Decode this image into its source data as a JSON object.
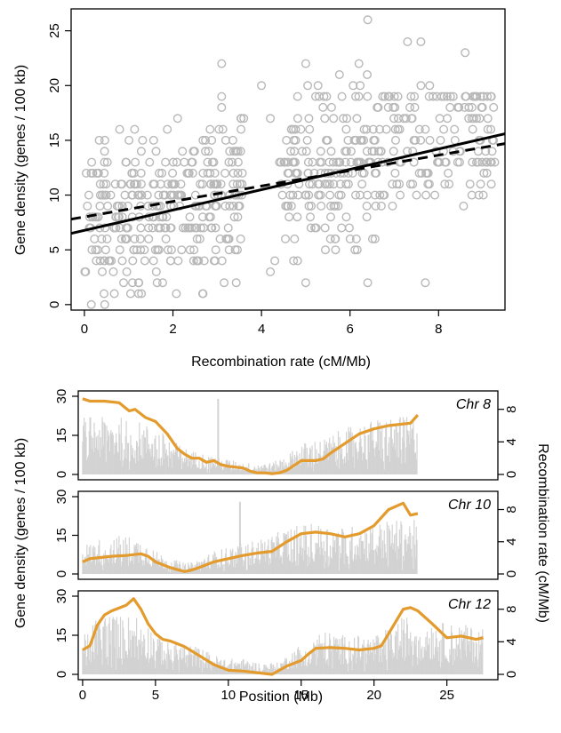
{
  "colors": {
    "points": "#b8b8b8",
    "bars": "#d3d3d3",
    "recomb_line": "#e39b2d",
    "fit": "#000000"
  },
  "chart_data": [
    {
      "type": "scatter",
      "xlabel": "Recombination rate (cM/Mb)",
      "ylabel": "Gene density (genes / 100 kb)",
      "xlim": [
        -0.3,
        9.5
      ],
      "ylim": [
        -0.5,
        27
      ],
      "x_ticks": [
        0,
        2,
        4,
        6,
        8
      ],
      "y_ticks": [
        0,
        5,
        10,
        15,
        20,
        25
      ],
      "fit_lines": [
        {
          "style": "solid",
          "x": [
            -0.3,
            9.5
          ],
          "y": [
            6.5,
            15.6
          ]
        },
        {
          "style": "dashed",
          "x": [
            -0.3,
            9.5
          ],
          "y": [
            7.8,
            14.7
          ]
        }
      ],
      "clusters": [
        {
          "x": [
            0.0,
            1.6
          ],
          "y": [
            0,
            16
          ],
          "count": 150
        },
        {
          "x": [
            1.6,
            3.6
          ],
          "y": [
            0,
            17
          ],
          "count": 190
        },
        {
          "x": [
            4.4,
            6.8
          ],
          "y": [
            2,
            21
          ],
          "count": 200
        },
        {
          "x": [
            6.8,
            9.3
          ],
          "y": [
            2,
            19
          ],
          "count": 140
        }
      ],
      "outliers": [
        {
          "x": 3.1,
          "y": 22
        },
        {
          "x": 3.1,
          "y": 19
        },
        {
          "x": 3.1,
          "y": 18
        },
        {
          "x": 4.0,
          "y": 20
        },
        {
          "x": 4.2,
          "y": 17
        },
        {
          "x": 5.0,
          "y": 22
        },
        {
          "x": 6.4,
          "y": 26
        },
        {
          "x": 6.2,
          "y": 22
        },
        {
          "x": 7.3,
          "y": 24
        },
        {
          "x": 7.6,
          "y": 24
        },
        {
          "x": 8.6,
          "y": 23
        },
        {
          "x": 7.8,
          "y": 20
        },
        {
          "x": 7.6,
          "y": 20
        },
        {
          "x": 9.1,
          "y": 19
        },
        {
          "x": 3.6,
          "y": 17
        },
        {
          "x": 6.4,
          "y": 2
        },
        {
          "x": 7.7,
          "y": 2
        },
        {
          "x": 4.2,
          "y": 3
        },
        {
          "x": 4.3,
          "y": 4
        },
        {
          "x": 5.0,
          "y": 2
        }
      ]
    },
    {
      "type": "bar+line",
      "label": "Chr 8",
      "length_mb": 23,
      "recomb_x": [
        0,
        0.5,
        1.5,
        2.5,
        3.2,
        3.6,
        4.3,
        5.0,
        5.8,
        6.5,
        7.0,
        7.5,
        8.0,
        8.5,
        9.0,
        9.5,
        10.0,
        11.0,
        11.5,
        12.0,
        12.5,
        13.0,
        13.5,
        14.0,
        15.0,
        16.0,
        16.5,
        17.0,
        18.0,
        19.0,
        20.0,
        21.0,
        22.0,
        22.5,
        23.0
      ],
      "recomb_y": [
        9.3,
        9.0,
        9.0,
        8.8,
        7.8,
        8.0,
        7.0,
        6.5,
        5.0,
        3.2,
        2.5,
        2.0,
        2.0,
        1.5,
        1.7,
        1.2,
        1.0,
        0.8,
        0.4,
        0.2,
        0.2,
        0.1,
        0.2,
        0.5,
        1.7,
        1.7,
        1.9,
        2.6,
        3.8,
        5.0,
        5.6,
        6.0,
        6.2,
        6.3,
        7.3
      ],
      "bar_mean": [
        15,
        15,
        15,
        15,
        14,
        14,
        13,
        12,
        10,
        8,
        7,
        6,
        6,
        5,
        5,
        4,
        4,
        3,
        3,
        3,
        3,
        3,
        4,
        5,
        8,
        9,
        9,
        10,
        12,
        13,
        14,
        15,
        15,
        15,
        15
      ],
      "spikes": [
        {
          "x": 9.3,
          "y": 29
        }
      ]
    },
    {
      "type": "bar+line",
      "label": "Chr 10",
      "length_mb": 23,
      "recomb_x": [
        0,
        0.5,
        1.0,
        2.0,
        3.0,
        4.0,
        4.5,
        5.0,
        6.0,
        7.0,
        7.5,
        8.0,
        9.0,
        10.0,
        11.0,
        12.0,
        13.0,
        14.0,
        15.0,
        16.0,
        17.0,
        18.0,
        19.0,
        20.0,
        21.0,
        22.0,
        22.5,
        23.0
      ],
      "recomb_y": [
        1.5,
        1.9,
        2.0,
        2.2,
        2.3,
        2.5,
        2.2,
        1.5,
        0.8,
        0.3,
        0.5,
        0.8,
        1.5,
        1.9,
        2.3,
        2.6,
        2.8,
        4.0,
        5.0,
        5.2,
        5.0,
        4.6,
        5.0,
        6.0,
        8.0,
        8.8,
        7.3,
        7.5
      ],
      "bar_mean": [
        8,
        8,
        9,
        10,
        10,
        9,
        8,
        6,
        4,
        3,
        3,
        4,
        6,
        7,
        8,
        9,
        10,
        12,
        13,
        13,
        13,
        12,
        13,
        13,
        14,
        14,
        14,
        14
      ],
      "spikes": [
        {
          "x": 10.8,
          "y": 28
        }
      ]
    },
    {
      "type": "bar+line",
      "label": "Chr 12",
      "length_mb": 27.5,
      "recomb_x": [
        0,
        0.5,
        1.0,
        1.5,
        2.0,
        3.0,
        3.5,
        4.0,
        4.5,
        5.0,
        5.5,
        6.0,
        7.0,
        8.0,
        9.0,
        10.0,
        11.0,
        12.0,
        13.0,
        13.5,
        14.0,
        15.0,
        15.5,
        16.0,
        17.0,
        18.0,
        19.0,
        20.0,
        20.5,
        21.5,
        22.0,
        22.5,
        23.0,
        24.0,
        25.0,
        26.0,
        27.0,
        27.5
      ],
      "recomb_y": [
        3.0,
        3.5,
        6.0,
        7.3,
        7.8,
        8.5,
        9.3,
        8.0,
        6.2,
        5.0,
        4.3,
        4.1,
        3.4,
        2.3,
        1.2,
        0.5,
        0.4,
        0.2,
        0.0,
        0.5,
        1.0,
        1.7,
        2.5,
        3.2,
        3.3,
        3.2,
        3.0,
        3.2,
        3.5,
        6.5,
        8.0,
        8.2,
        7.8,
        6.2,
        4.5,
        4.7,
        4.3,
        4.5
      ],
      "bar_mean": [
        10,
        12,
        15,
        16,
        16,
        15,
        16,
        15,
        13,
        11,
        9,
        8,
        8,
        7,
        5,
        4,
        4,
        3,
        3,
        3,
        5,
        8,
        10,
        11,
        11,
        10,
        10,
        10,
        11,
        13,
        15,
        15,
        15,
        14,
        13,
        13,
        12,
        12
      ]
    }
  ],
  "bottom": {
    "left_ylabel": "Gene density (genes / 100 kb)",
    "right_ylabel": "Recombination rate (cM/Mb)",
    "xlabel": "Position (Mb)",
    "x_ticks": [
      0,
      5,
      10,
      15,
      20,
      25
    ],
    "left_ticks": [
      0,
      15,
      30
    ],
    "right_ticks": [
      0,
      4,
      8
    ],
    "bar_max": 30,
    "rate_max": 10
  }
}
